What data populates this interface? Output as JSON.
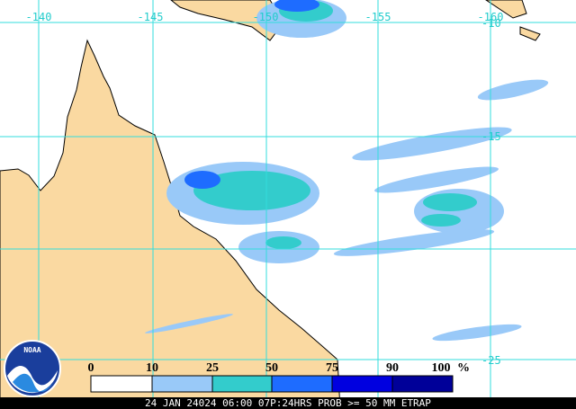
{
  "map": {
    "longitude_labels": [
      "-140",
      "-145",
      "-150",
      "-155",
      "-160"
    ],
    "latitude_labels": [
      "-10",
      "-15",
      "-25"
    ],
    "logo": "NOAA",
    "legend": {
      "labels": [
        "0",
        "10",
        "25",
        "50",
        "75",
        "90",
        "100"
      ],
      "unit": "%"
    },
    "footer": "24 JAN 24024 06:00 07P:24HRS PROB >= 50 MM ETRAP"
  }
}
